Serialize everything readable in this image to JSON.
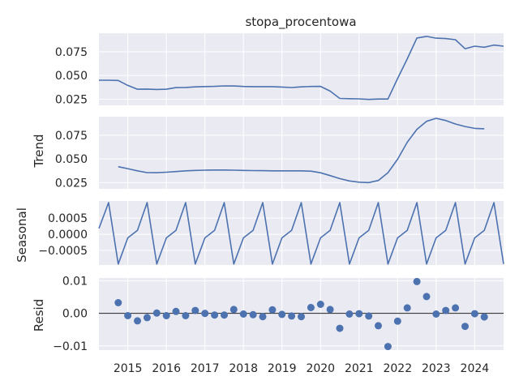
{
  "chart_data": {
    "type": "line",
    "title": "stopa_procentowa",
    "colors": {
      "series": "#4c72b0",
      "panel_bg": "#eaeaf2",
      "grid": "#ffffff",
      "zero_line": "#000000"
    },
    "x_ticks": [
      "2015",
      "2016",
      "2017",
      "2018",
      "2019",
      "2020",
      "2021",
      "2022",
      "2023",
      "2024"
    ],
    "x_range": [
      2014.25,
      2024.75
    ],
    "panels": [
      {
        "name": "observed",
        "ylabel": "",
        "kind": "line",
        "ylim": [
          0.0185,
          0.0945
        ],
        "yticks": [
          0.025,
          0.05,
          0.075
        ],
        "ytick_labels": [
          "0.025",
          "0.050",
          "0.075"
        ],
        "x": [
          2014.25,
          2014.5,
          2014.75,
          2015.0,
          2015.25,
          2015.5,
          2015.75,
          2016.0,
          2016.25,
          2016.5,
          2016.75,
          2017.0,
          2017.25,
          2017.5,
          2017.75,
          2018.0,
          2018.25,
          2018.5,
          2018.75,
          2019.0,
          2019.25,
          2019.5,
          2019.75,
          2020.0,
          2020.25,
          2020.5,
          2020.75,
          2021.0,
          2021.25,
          2021.5,
          2021.75,
          2022.0,
          2022.25,
          2022.5,
          2022.75,
          2023.0,
          2023.25,
          2023.5,
          2023.75,
          2024.0,
          2024.25,
          2024.5,
          2024.75
        ],
        "y": [
          0.045,
          0.045,
          0.0447,
          0.0395,
          0.0355,
          0.0357,
          0.0352,
          0.0355,
          0.0372,
          0.0374,
          0.038,
          0.0383,
          0.0385,
          0.039,
          0.0389,
          0.0384,
          0.0382,
          0.0382,
          0.0382,
          0.0378,
          0.0373,
          0.038,
          0.0384,
          0.0385,
          0.0335,
          0.0258,
          0.0255,
          0.0253,
          0.0247,
          0.0252,
          0.0252,
          0.0468,
          0.0675,
          0.0895,
          0.0912,
          0.0893,
          0.0889,
          0.0877,
          0.0782,
          0.0808,
          0.0797,
          0.082,
          0.0808
        ]
      },
      {
        "name": "trend",
        "ylabel": "Trend",
        "kind": "line",
        "ylim": [
          0.0185,
          0.0945
        ],
        "yticks": [
          0.025,
          0.05,
          0.075
        ],
        "ytick_labels": [
          "0.025",
          "0.050",
          "0.075"
        ],
        "x": [
          2014.75,
          2015.0,
          2015.25,
          2015.5,
          2015.75,
          2016.0,
          2016.25,
          2016.5,
          2016.75,
          2017.0,
          2017.25,
          2017.5,
          2017.75,
          2018.0,
          2018.25,
          2018.5,
          2018.75,
          2019.0,
          2019.25,
          2019.5,
          2019.75,
          2020.0,
          2020.25,
          2020.5,
          2020.75,
          2021.0,
          2021.25,
          2021.5,
          2021.75,
          2022.0,
          2022.25,
          2022.5,
          2022.75,
          2023.0,
          2023.25,
          2023.5,
          2023.75,
          2024.0,
          2024.25
        ],
        "y": [
          0.0418,
          0.0398,
          0.0375,
          0.0356,
          0.0355,
          0.036,
          0.0367,
          0.0375,
          0.0379,
          0.0381,
          0.0383,
          0.0383,
          0.0381,
          0.0379,
          0.0377,
          0.0376,
          0.0375,
          0.0375,
          0.0375,
          0.0375,
          0.0371,
          0.0354,
          0.0324,
          0.0293,
          0.0268,
          0.0255,
          0.0251,
          0.0273,
          0.0355,
          0.0497,
          0.0676,
          0.0812,
          0.0896,
          0.0928,
          0.0905,
          0.0868,
          0.0842,
          0.0822,
          0.0818
        ]
      },
      {
        "name": "seasonal",
        "ylabel": "Seasonal",
        "kind": "line",
        "ylim": [
          -0.00095,
          0.00103
        ],
        "yticks": [
          -0.0005,
          0.0,
          0.0005
        ],
        "ytick_labels": [
          "−0.0005",
          "0.0000",
          "0.0005"
        ],
        "x": [
          2014.25,
          2014.5,
          2014.75,
          2015.0,
          2015.25,
          2015.5,
          2015.75,
          2016.0,
          2016.25,
          2016.5,
          2016.75,
          2017.0,
          2017.25,
          2017.5,
          2017.75,
          2018.0,
          2018.25,
          2018.5,
          2018.75,
          2019.0,
          2019.25,
          2019.5,
          2019.75,
          2020.0,
          2020.25,
          2020.5,
          2020.75,
          2021.0,
          2021.25,
          2021.5,
          2021.75,
          2022.0,
          2022.25,
          2022.5,
          2022.75,
          2023.0,
          2023.25,
          2023.5,
          2023.75,
          2024.0,
          2024.25,
          2024.5,
          2024.75
        ],
        "y": [
          0.00018,
          0.00098,
          -0.00092,
          -0.00011,
          0.00012,
          0.00098,
          -0.00092,
          -0.00011,
          0.00012,
          0.00098,
          -0.00092,
          -0.00011,
          0.00012,
          0.00098,
          -0.00092,
          -0.00011,
          0.00012,
          0.00098,
          -0.00092,
          -0.00011,
          0.00012,
          0.00098,
          -0.00092,
          -0.00011,
          0.00012,
          0.00098,
          -0.00092,
          -0.00011,
          0.00012,
          0.00098,
          -0.00092,
          -0.00011,
          0.00012,
          0.00098,
          -0.00092,
          -0.00011,
          0.00012,
          0.00098,
          -0.00092,
          -0.00011,
          0.00012,
          0.00098,
          -0.00092
        ]
      },
      {
        "name": "resid",
        "ylabel": "Resid",
        "kind": "scatter",
        "ylim": [
          -0.0113,
          0.0109
        ],
        "yticks": [
          -0.01,
          0.0,
          0.01
        ],
        "ytick_labels": [
          "−0.01",
          "0.00",
          "0.01"
        ],
        "zero_line": true,
        "x": [
          2014.75,
          2015.0,
          2015.25,
          2015.5,
          2015.75,
          2016.0,
          2016.25,
          2016.5,
          2016.75,
          2017.0,
          2017.25,
          2017.5,
          2017.75,
          2018.0,
          2018.25,
          2018.5,
          2018.75,
          2019.0,
          2019.25,
          2019.5,
          2019.75,
          2020.0,
          2020.25,
          2020.5,
          2020.75,
          2021.0,
          2021.25,
          2021.5,
          2021.75,
          2022.0,
          2022.25,
          2022.5,
          2022.75,
          2023.0,
          2023.25,
          2023.5,
          2023.75,
          2024.0,
          2024.25
        ],
        "y": [
          0.0033,
          -0.0007,
          -0.0023,
          -0.0013,
          0.0001,
          -0.0007,
          0.0006,
          -0.0007,
          0.0009,
          0.0,
          -0.0005,
          -0.0005,
          0.0012,
          -0.0002,
          -0.0004,
          -0.001,
          0.0011,
          -0.0003,
          -0.0008,
          -0.001,
          0.0018,
          0.0028,
          0.0012,
          -0.0046,
          -0.0002,
          -0.0001,
          -0.0008,
          -0.0038,
          -0.0102,
          -0.0024,
          0.0017,
          0.0098,
          0.0052,
          -0.0002,
          0.0009,
          0.0017,
          -0.004,
          -0.0001,
          -0.0011
        ]
      }
    ]
  }
}
